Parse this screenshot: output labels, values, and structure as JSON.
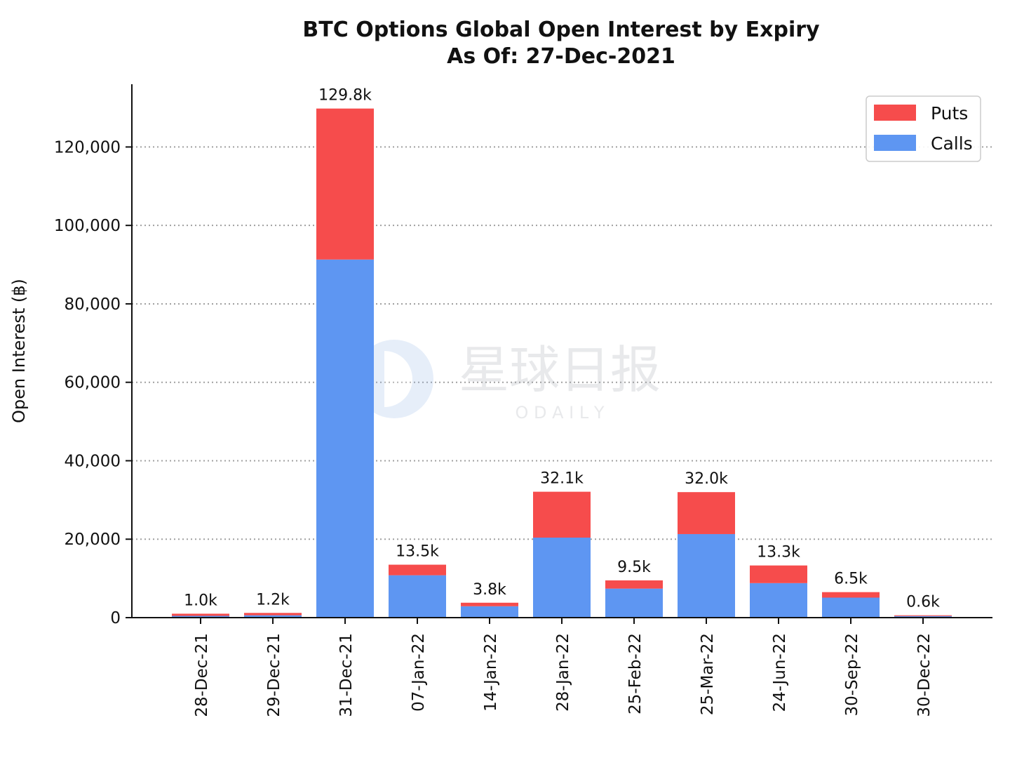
{
  "chart_data": {
    "type": "bar",
    "stacked": true,
    "title": "BTC Options Global Open Interest by Expiry",
    "subtitle": "As Of: 27-Dec-2021",
    "xlabel": "",
    "ylabel": "Open Interest (฿)",
    "categories": [
      "28-Dec-21",
      "29-Dec-21",
      "31-Dec-21",
      "07-Jan-22",
      "14-Jan-22",
      "28-Jan-22",
      "25-Feb-22",
      "25-Mar-22",
      "24-Jun-22",
      "30-Sep-22",
      "30-Dec-22"
    ],
    "series": [
      {
        "name": "Calls",
        "color": "#5e96f2",
        "values": [
          450,
          600,
          91300,
          10800,
          2900,
          20400,
          7400,
          21300,
          8800,
          5100,
          400
        ]
      },
      {
        "name": "Puts",
        "color": "#f64c4c",
        "values": [
          550,
          600,
          38500,
          2700,
          900,
          11700,
          2100,
          10700,
          4500,
          1400,
          200
        ]
      }
    ],
    "total_labels": [
      "1.0k",
      "1.2k",
      "129.8k",
      "13.5k",
      "3.8k",
      "32.1k",
      "9.5k",
      "32.0k",
      "13.3k",
      "6.5k",
      "0.6k"
    ],
    "ylim": [
      0,
      136000
    ],
    "yticks": [
      0,
      20000,
      40000,
      60000,
      80000,
      100000,
      120000
    ],
    "ytick_labels": [
      "0",
      "20,000",
      "40,000",
      "60,000",
      "80,000",
      "100,000",
      "120,000"
    ],
    "grid": "horizontal-dotted",
    "legend": {
      "placement": "top-right",
      "order": [
        "Puts",
        "Calls"
      ]
    }
  },
  "watermark": {
    "chinese": "星球日报",
    "latin": "O D A I L Y"
  }
}
